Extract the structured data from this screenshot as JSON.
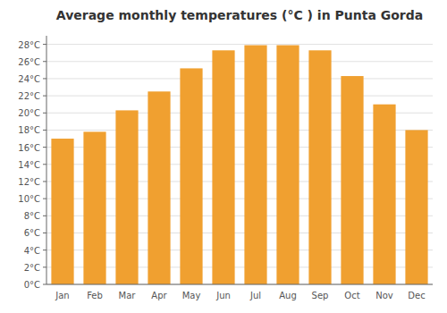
{
  "chart_data": {
    "type": "bar",
    "title": "Average monthly temperatures (°C ) in Punta Gorda",
    "categories": [
      "Jan",
      "Feb",
      "Mar",
      "Apr",
      "May",
      "Jun",
      "Jul",
      "Aug",
      "Sep",
      "Oct",
      "Nov",
      "Dec"
    ],
    "values": [
      17.0,
      17.8,
      20.3,
      22.5,
      25.2,
      27.3,
      27.9,
      27.9,
      27.3,
      24.3,
      21.0,
      18.0
    ],
    "color": "#F0A030",
    "ylim": [
      0,
      29
    ],
    "yticks": [
      {
        "value": 0,
        "label": "0°C"
      },
      {
        "value": 2,
        "label": "2°C"
      },
      {
        "value": 4,
        "label": "4°C"
      },
      {
        "value": 6,
        "label": "6°C"
      },
      {
        "value": 8,
        "label": "8°C"
      },
      {
        "value": 10,
        "label": "10°C"
      },
      {
        "value": 12,
        "label": "12°C"
      },
      {
        "value": 14,
        "label": "14°C"
      },
      {
        "value": 16,
        "label": "16°C"
      },
      {
        "value": 18,
        "label": "18°C"
      },
      {
        "value": 20,
        "label": "20°C"
      },
      {
        "value": 22,
        "label": "22°C"
      },
      {
        "value": 24,
        "label": "24°C"
      },
      {
        "value": 26,
        "label": "26°C"
      },
      {
        "value": 28,
        "label": "28°C"
      }
    ],
    "grid": true
  }
}
